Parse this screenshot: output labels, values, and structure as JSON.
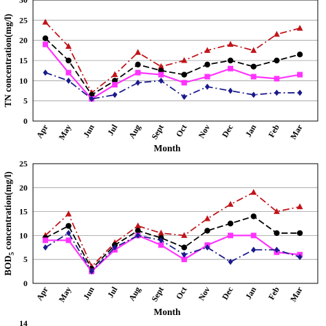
{
  "chart_data": [
    {
      "type": "line",
      "categories": [
        "Apr",
        "May",
        "Jun",
        "Jul",
        "Aug",
        "Sept",
        "Oct",
        "Nov",
        "Dec",
        "Jan",
        "Feb",
        "Mar"
      ],
      "xlabel": "Month",
      "ylabel": "TN concentration(mg/l)",
      "ylim": [
        0,
        30
      ],
      "yticks": [
        "0",
        "5",
        "10",
        "15",
        "20",
        "25",
        "30"
      ],
      "grid": true,
      "series": [
        {
          "color": "#c0141a",
          "marker": "triangle",
          "dash": "dashdot",
          "values": [
            24.5,
            18.5,
            7,
            11.5,
            17,
            13.5,
            15,
            17.5,
            19,
            17.5,
            21.5,
            23
          ]
        },
        {
          "color": "#000000",
          "marker": "circle",
          "dash": "dashed",
          "values": [
            20.5,
            15,
            6.5,
            10,
            14,
            12.5,
            11.5,
            14,
            15,
            13.5,
            15,
            16.5
          ]
        },
        {
          "color": "#ff33ff",
          "marker": "square",
          "dash": "solid",
          "values": [
            19,
            12,
            5.5,
            9,
            12,
            11.5,
            9.5,
            11,
            13,
            11,
            10.5,
            11.5
          ]
        },
        {
          "color": "#1a1a8c",
          "marker": "diamond",
          "dash": "dashdot",
          "values": [
            12,
            10,
            5.5,
            6.5,
            9.5,
            10,
            6,
            8.5,
            7.5,
            6.5,
            7,
            7
          ]
        }
      ]
    },
    {
      "type": "line",
      "categories": [
        "Apr",
        "May",
        "Jun",
        "Jul",
        "Aug",
        "Sept",
        "Oct",
        "Nov",
        "Dec",
        "Jan",
        "Feb",
        "Mar"
      ],
      "xlabel": "Month",
      "ylabel": "BOD",
      "ylabel_sub": "5",
      "ylabel_rest": " concentration(mg/l)",
      "ylim": [
        0,
        25
      ],
      "yticks": [
        "0",
        "5",
        "10",
        "15",
        "20",
        "25"
      ],
      "grid": true,
      "series": [
        {
          "color": "#c0141a",
          "marker": "triangle",
          "dash": "dashdot",
          "values": [
            10,
            14.5,
            3.5,
            8.5,
            12,
            10.5,
            10,
            13.5,
            16.5,
            19,
            15,
            16
          ]
        },
        {
          "color": "#000000",
          "marker": "circle",
          "dash": "dashed",
          "values": [
            9.5,
            12,
            3,
            8,
            11,
            9.5,
            7.5,
            11,
            12.5,
            14,
            10.5,
            10.5
          ]
        },
        {
          "color": "#ff33ff",
          "marker": "square",
          "dash": "solid",
          "values": [
            9,
            9,
            2.5,
            7,
            10,
            8,
            5,
            8,
            10,
            10,
            6.5,
            6
          ]
        },
        {
          "color": "#1a1a8c",
          "marker": "diamond",
          "dash": "dashdot",
          "values": [
            7.5,
            10.5,
            2.5,
            7.5,
            10,
            9,
            6,
            7.5,
            4.5,
            7,
            7,
            5.5
          ]
        }
      ]
    }
  ],
  "next_panel_tick": "14"
}
